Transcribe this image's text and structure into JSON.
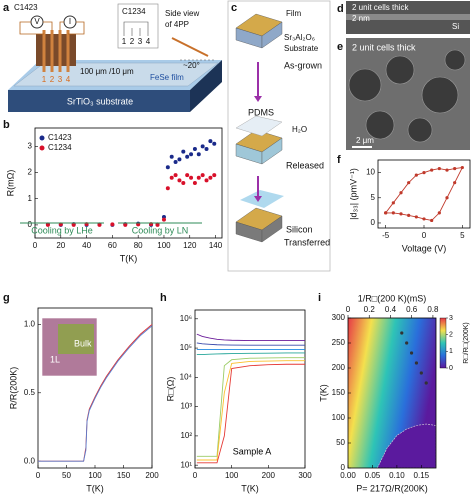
{
  "figure": {
    "a": {
      "label": "a",
      "c1423": "C1423",
      "c1234": "C1234",
      "v": "V",
      "i": "I",
      "pins": [
        "1",
        "2",
        "3",
        "4"
      ],
      "pins_small": [
        "1",
        "2",
        "3",
        "4"
      ],
      "scale": "100 μm /10 μm",
      "side_view": [
        "Side view",
        "of 4PP"
      ],
      "film": "FeSe film",
      "angle": "~20°",
      "substrate": "SrTiO₃ substrate"
    },
    "c": {
      "label": "c",
      "film": "Film",
      "substrate": [
        "Sr₃Al₂O₆",
        "Substrate"
      ],
      "as_grown": "As-grown",
      "pdms": "PDMS",
      "water": "H₂O",
      "released": "Released",
      "silicon": "Silicon",
      "transferred": "Transferred"
    },
    "d": {
      "label": "d",
      "thickness": "2 unit cells thick",
      "scale": "2 nm",
      "si": "Si"
    },
    "e": {
      "label": "e",
      "thickness": "2 unit cells thick",
      "scale": "2 μm"
    }
  },
  "chart_data": [
    {
      "panel": "b",
      "type": "scatter",
      "x_label": "T(K)",
      "y_label": "R(mΩ)",
      "x": [
        10,
        20,
        30,
        40,
        50,
        60,
        70,
        80,
        90,
        95,
        100,
        103,
        106,
        109,
        112,
        115,
        118,
        121,
        124,
        127,
        130,
        133,
        136,
        139
      ],
      "series": [
        {
          "name": "C1423",
          "color": "#1a2a8a",
          "values": [
            0.02,
            0,
            0.03,
            0,
            0.02,
            0,
            0.03,
            0.05,
            0,
            0.02,
            0.3,
            2.2,
            2.6,
            2.4,
            2.5,
            2.8,
            2.6,
            2.7,
            2.9,
            2.7,
            3.0,
            2.9,
            3.2,
            3.1
          ]
        },
        {
          "name": "C1234",
          "color": "#d8102a",
          "values": [
            0,
            0.02,
            0,
            0.03,
            0,
            0.02,
            0,
            0.02,
            0.03,
            0,
            0.2,
            1.4,
            1.8,
            1.9,
            1.7,
            1.6,
            1.9,
            1.8,
            1.6,
            1.8,
            1.9,
            1.7,
            1.8,
            1.9
          ]
        }
      ],
      "xlim": [
        0,
        145
      ],
      "xticks": [
        0,
        20,
        40,
        60,
        80,
        100,
        120,
        140
      ],
      "ylim": [
        -0.5,
        3.7
      ],
      "yticks": [
        0,
        1,
        2,
        3
      ],
      "legend": "upper left",
      "annotations": [
        "Cooling by LHe",
        "Cooling by LN"
      ],
      "annotation_color": "#2e8b57"
    },
    {
      "panel": "f",
      "type": "line",
      "x_label": "Voltage (V)",
      "y_label": "|d₃₃| (pmV⁻¹)",
      "color": "#c0392b",
      "markers": true,
      "x": [
        -5,
        -4,
        -3,
        -2,
        -1,
        0,
        1,
        2,
        3,
        4,
        5,
        4,
        3,
        2,
        1,
        0,
        -1,
        -2,
        -3,
        -4,
        -5
      ],
      "values": [
        2,
        4,
        6,
        8,
        9.5,
        10,
        10.5,
        10.8,
        10.5,
        10.8,
        11,
        8,
        5,
        2,
        0.5,
        0.8,
        1.2,
        1.5,
        1.8,
        2,
        2
      ],
      "xlim": [
        -6,
        6
      ],
      "xticks": [
        -5,
        0,
        5
      ],
      "ylim": [
        -1,
        12.5
      ],
      "yticks": [
        0,
        5,
        10
      ]
    },
    {
      "panel": "g",
      "type": "line",
      "x_label": "T(K)",
      "y_label": "R/R(200K)",
      "inset_labels": [
        "1L",
        "Bulk"
      ],
      "x": [
        0,
        20,
        40,
        60,
        80,
        84,
        86,
        90,
        100,
        110,
        120,
        140,
        160,
        180,
        200
      ],
      "series": [
        {
          "color": "#e03030",
          "values": [
            0,
            0,
            0,
            0,
            0,
            0.1,
            0.3,
            0.38,
            0.47,
            0.55,
            0.62,
            0.74,
            0.84,
            0.93,
            1.0
          ]
        },
        {
          "color": "#5a7fd0",
          "values": [
            0,
            0,
            0,
            0,
            0,
            0.08,
            0.29,
            0.37,
            0.46,
            0.54,
            0.61,
            0.73,
            0.83,
            0.92,
            0.99
          ]
        }
      ],
      "xlim": [
        0,
        200
      ],
      "xticks": [
        0,
        50,
        100,
        150,
        200
      ],
      "ylim": [
        -0.05,
        1.12
      ],
      "yticks": [
        {
          "value": 0,
          "label": "0.0"
        },
        0.5,
        {
          "value": 1,
          "label": "1.0"
        }
      ]
    },
    {
      "panel": "h",
      "type": "line",
      "x_label": "T(K)",
      "y_label": "R□(Ω)",
      "ylog": true,
      "annotations": [
        "Sample A"
      ],
      "annotation_color": "#000000",
      "x": [
        5,
        20,
        40,
        60,
        80,
        100,
        150,
        200,
        250,
        300
      ],
      "series": [
        {
          "color": "#6a1b9a",
          "values": [
            300000,
            250000,
            220000,
            200000,
            190000,
            185000,
            180000,
            180000,
            180000,
            180000
          ]
        },
        {
          "color": "#3949ab",
          "values": [
            150000,
            140000,
            135000,
            130000,
            128000,
            127000,
            126000,
            126000,
            126000,
            126000
          ]
        },
        {
          "color": "#1e88e5",
          "values": [
            90000,
            90000,
            90000,
            90000,
            90000,
            90000,
            90000,
            90000,
            90000,
            90000
          ]
        },
        {
          "color": "#26a69a",
          "values": [
            60000,
            60000,
            62000,
            63000,
            64000,
            65000,
            66000,
            67000,
            68000,
            68000
          ]
        },
        {
          "color": "#9ccc65",
          "values": [
            20,
            20,
            20,
            20,
            25000,
            40000,
            45000,
            46000,
            47000,
            47000
          ]
        },
        {
          "color": "#fbc02d",
          "values": [
            15,
            15,
            15,
            15,
            3000,
            30000,
            35000,
            36000,
            37000,
            37000
          ]
        },
        {
          "color": "#e53935",
          "values": [
            12,
            12,
            12,
            12,
            100,
            20000,
            25000,
            27000,
            28000,
            28000
          ]
        }
      ],
      "xlim": [
        0,
        300
      ],
      "xticks": [
        0,
        100,
        200,
        300
      ],
      "ylim": [
        8,
        2000000
      ],
      "yticks": [
        {
          "value": 10,
          "label": "10¹"
        },
        {
          "value": 100,
          "label": "10²"
        },
        {
          "value": 1000,
          "label": "10³"
        },
        {
          "value": 10000,
          "label": "10⁴"
        },
        {
          "value": 100000,
          "label": "10⁵"
        },
        {
          "value": 1000000,
          "label": "10⁶"
        }
      ]
    },
    {
      "panel": "i",
      "type": "phase",
      "x_label": "P= 217Ω/R(200K)",
      "x2_label": "1/R□(200 K)(mS)",
      "y_label": "T(K)",
      "colorbar_label": "R□/R□(200K)",
      "colors": [
        "#5b1a9e",
        "#2a6fdb",
        "#2ec4b6",
        "#f4e04d",
        "#e63946"
      ],
      "clim": [
        0,
        3
      ],
      "cticks": [
        0,
        1,
        2,
        3
      ],
      "boundary": {
        "x": [
          0.06,
          0.08,
          0.1,
          0.12,
          0.14,
          0.16,
          0.18
        ],
        "values": [
          0,
          40,
          65,
          78,
          85,
          88,
          85
        ]
      },
      "crossover": {
        "x": [
          0.11,
          0.12,
          0.13,
          0.14,
          0.15,
          0.16
        ],
        "values": [
          270,
          250,
          230,
          210,
          190,
          170
        ],
        "color": "#333333"
      },
      "xlim": [
        0,
        0.18
      ],
      "xticks": [
        {
          "value": 0,
          "label": "0.00"
        },
        0.05,
        {
          "value": 0.1,
          "label": "0.10"
        },
        0.15
      ],
      "x2lim": [
        0,
        0.829
      ],
      "x2ticks": [
        0,
        0.2,
        0.4,
        0.6,
        0.8
      ],
      "ylim": [
        0,
        300
      ],
      "yticks": [
        0,
        50,
        100,
        150,
        200,
        250,
        300
      ]
    }
  ]
}
